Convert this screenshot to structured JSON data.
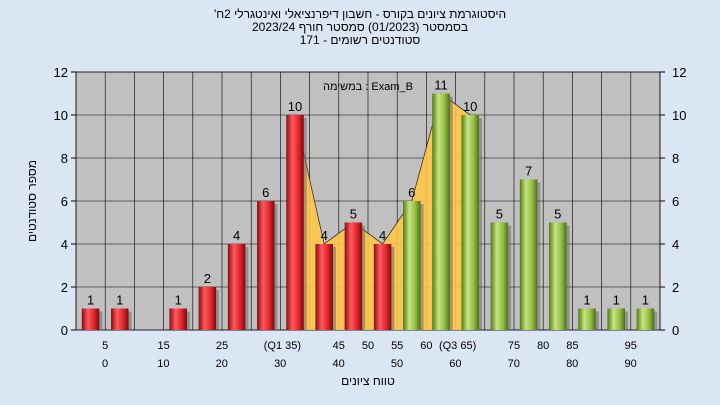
{
  "title_lines": [
    "'היסטוגרמת ציונים בקורס - חשבון דיפרנציאלי ואינטגרלי 2ח",
    "בסמסטר  (01/2023)  סמסטר חורף 2023/24",
    "סטודנטים רשומים - 171"
  ],
  "chart_data": {
    "type": "bar",
    "ylabel": "מספר סטודנטים",
    "xlabel": "טווח ציונים",
    "annotation": "במשימה : Exam_B",
    "ylim": [
      0,
      12
    ],
    "yticks": [
      0,
      2,
      4,
      6,
      8,
      10,
      12
    ],
    "grid": true,
    "x_labels_top": [
      "5",
      "15",
      "25",
      "(Q1 35)",
      "45",
      "50",
      "55",
      "60",
      "(Q3 65)",
      "75",
      "80",
      "85",
      "95"
    ],
    "x_labels_bottom": [
      "0",
      "10",
      "20",
      "30",
      "40",
      "50",
      "60",
      "70",
      "80",
      "90"
    ],
    "categories": [
      "0-5",
      "5-10",
      "10-15",
      "15-20",
      "20-25",
      "25-30",
      "30-35",
      "35-40",
      "40-45",
      "45-50",
      "50-55",
      "55-60",
      "60-65",
      "65-70",
      "70-75",
      "75-80",
      "80-85",
      "85-90",
      "90-95",
      "95-100"
    ],
    "values": [
      1,
      1,
      0,
      1,
      2,
      4,
      6,
      10,
      4,
      5,
      4,
      6,
      11,
      10,
      5,
      7,
      5,
      1,
      1,
      1
    ],
    "data_labels": [
      "1",
      "1",
      "",
      "1",
      "2",
      "4",
      "6",
      "10",
      "4",
      "5",
      "4",
      "6",
      "11",
      "10",
      "5",
      "7",
      "5",
      "1",
      "1",
      "1"
    ],
    "bar_colors": [
      "red",
      "red",
      "red",
      "red",
      "red",
      "red",
      "red",
      "red",
      "red",
      "red",
      "red",
      "green",
      "green",
      "green",
      "green",
      "green",
      "green",
      "green",
      "green",
      "green"
    ],
    "colors": {
      "red": "#e0262c",
      "green": "#93bd48",
      "area": "#ffc74a",
      "plot_bg": "#c0c0c0",
      "page_bg": "#dbe6f5"
    }
  }
}
